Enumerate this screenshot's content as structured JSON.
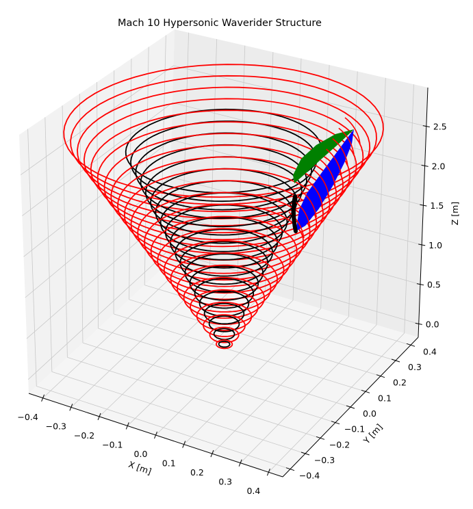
{
  "chart_data": {
    "type": "3d-wireframe",
    "title": "Mach 10 Hypersonic Waverider Structure",
    "xlabel": "X [m]",
    "ylabel": "Y [m]",
    "zlabel": "Z [m]",
    "xticks": [
      "−0.4",
      "−0.3",
      "−0.2",
      "−0.1",
      "0.0",
      "0.1",
      "0.2",
      "0.3",
      "0.4"
    ],
    "yticks": [
      "−0.4",
      "−0.3",
      "−0.2",
      "−0.1",
      "0.0",
      "0.1",
      "0.2",
      "0.3",
      "0.4"
    ],
    "zticks": [
      "0.0",
      "0.5",
      "1.0",
      "1.5",
      "2.0",
      "2.5"
    ],
    "xlim": [
      -0.45,
      0.45
    ],
    "ylim": [
      -0.45,
      0.45
    ],
    "zlim": [
      -0.17,
      2.99
    ],
    "grid": true,
    "series": [
      {
        "name": "shock cone (rings)",
        "color": "#ff0000",
        "kind": "circles",
        "z_start": 0.12,
        "z_end": 2.75,
        "count": 24,
        "half_angle_tan": 0.175
      },
      {
        "name": "base cone (rings)",
        "color": "#000000",
        "kind": "circles",
        "z_start": 0.12,
        "z_end": 2.5,
        "count": 20,
        "half_angle_tan": 0.118
      },
      {
        "name": "waverider lower surface",
        "color": "#0000ff",
        "kind": "surface"
      },
      {
        "name": "waverider upper surface",
        "color": "#008000",
        "kind": "surface"
      },
      {
        "name": "leading edge curve",
        "color": "#000000",
        "kind": "line"
      }
    ]
  },
  "figure": {
    "background": "#ffffff",
    "pane_colors": {
      "left": "#f2f2f2",
      "right": "#ececec",
      "floor": "#f5f5f5"
    },
    "grid_color": "#c8c8c8"
  }
}
